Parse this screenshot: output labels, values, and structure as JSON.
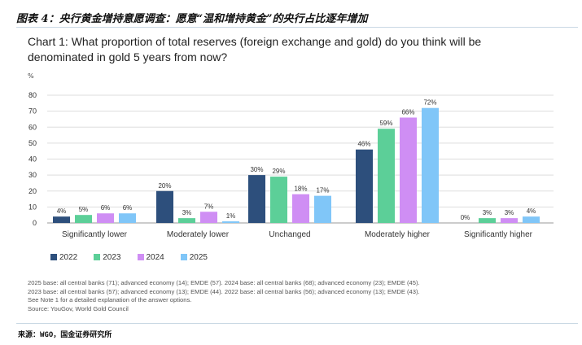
{
  "header": {
    "cn_title": "图表 4：央行黄金增持意愿调查：愿意“温和增持黄金”的央行占比逐年增加"
  },
  "chart_data": {
    "type": "bar",
    "title": "Chart 1: What proportion of total reserves (foreign exchange and gold) do you think will be denominated in gold 5 years from now?",
    "ylabel": "%",
    "ylim": [
      0,
      80
    ],
    "yticks": [
      0,
      10,
      20,
      30,
      40,
      50,
      60,
      70,
      80
    ],
    "grid": true,
    "legend_placement": "bottom-left",
    "categories": [
      "Significantly lower",
      "Moderately lower",
      "Unchanged",
      "Moderately higher",
      "Significantly higher"
    ],
    "series": [
      {
        "name": "2022",
        "color": "#2d4f7c",
        "values": [
          4,
          20,
          30,
          46,
          0
        ]
      },
      {
        "name": "2023",
        "color": "#5ccf98",
        "values": [
          5,
          3,
          29,
          59,
          3
        ]
      },
      {
        "name": "2024",
        "color": "#cf8ef4",
        "values": [
          6,
          7,
          18,
          66,
          3
        ]
      },
      {
        "name": "2025",
        "color": "#80c6f8",
        "values": [
          6,
          1,
          17,
          72,
          4
        ]
      }
    ]
  },
  "notes": [
    "2025 base: all central banks (71); advanced economy (14); EMDE (57). 2024 base: all central banks (68); advanced economy (23); EMDE (45).",
    "2023 base: all central banks (57); advanced economy (13); EMDE (44). 2022 base: all central banks (56); advanced economy (13); EMDE (43).",
    "See Note 1 for a detailed explanation of the answer options.",
    "Source: YouGov, World Gold Council"
  ],
  "footer": {
    "source": "来源：WGO，国金证券研究所"
  }
}
